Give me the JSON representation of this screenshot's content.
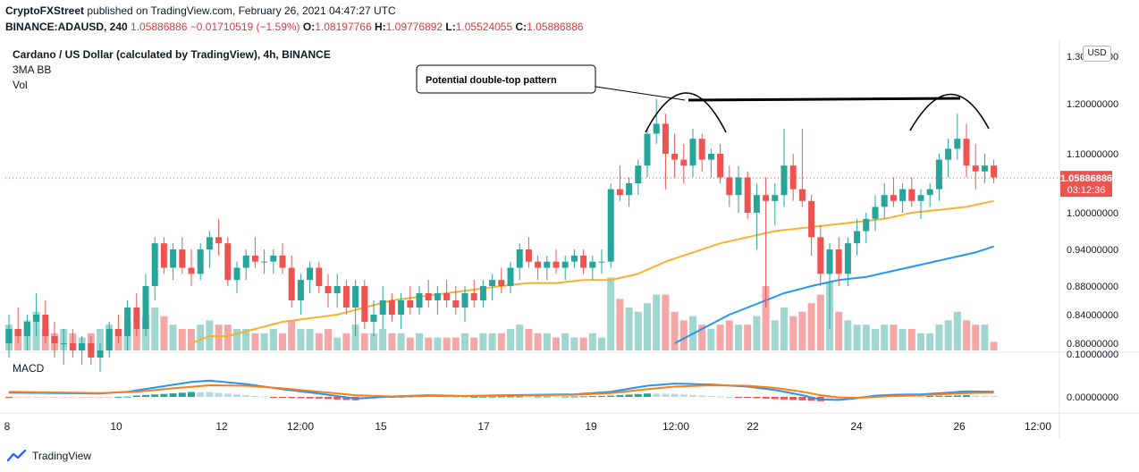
{
  "header": {
    "publisher": "CryptoFXStreet",
    "published_text": "published on TradingView.com, February 26, 2021 04:47:27 UTC",
    "symbol": "BINANCE:ADAUSD, 240",
    "last": "1.05886886",
    "change": "−0.01710519 (−1.59%)",
    "o_label": "O:",
    "o": "1.08197766",
    "h_label": "H:",
    "h": "1.09776892",
    "l_label": "L:",
    "l": "1.05524055",
    "c_label": "C:",
    "c": "1.05886886"
  },
  "legend": {
    "title": "Cardano / US Dollar (calculated by TradingView), 4h, BINANCE",
    "indicator": "3MA BB",
    "volume": "Vol",
    "macd": "MACD"
  },
  "currency_button": "USD",
  "annotation": "Potential double-top pattern",
  "price_tag": {
    "value": "1.05886886",
    "countdown": "03:12:36"
  },
  "footer": {
    "brand": "TradingView"
  },
  "colors": {
    "up": "#26a69a",
    "down": "#ef5350",
    "vol_up": "#9fd6cf",
    "vol_down": "#f5a6a6",
    "ma_fast": "#f7b12f",
    "ma_slow": "#2196f3",
    "macd": "#2196f3",
    "signal": "#ff7b15"
  },
  "chart_data": {
    "type": "candlestick",
    "symbol": "ADAUSD",
    "interval": "4h",
    "price_axis_ticks": [
      "1.30000000",
      "1.20000000",
      "1.10000000",
      "1.00000000",
      "0.94000000",
      "0.88000000",
      "0.84000000",
      "0.80000000"
    ],
    "macd_axis_ticks": [
      "0.10000000",
      "0.00000000"
    ],
    "x_tick_labels": [
      "8",
      "10",
      "12",
      "12:00",
      "15",
      "17",
      "19",
      "12:00",
      "22",
      "24",
      "26",
      "12:00"
    ],
    "candles": [
      [
        0.8,
        0.84,
        0.78,
        0.82
      ],
      [
        0.82,
        0.85,
        0.8,
        0.81
      ],
      [
        0.81,
        0.84,
        0.79,
        0.83
      ],
      [
        0.83,
        0.87,
        0.81,
        0.84
      ],
      [
        0.84,
        0.86,
        0.8,
        0.81
      ],
      [
        0.81,
        0.83,
        0.78,
        0.8
      ],
      [
        0.8,
        0.82,
        0.77,
        0.8
      ],
      [
        0.8,
        0.82,
        0.78,
        0.79
      ],
      [
        0.79,
        0.81,
        0.77,
        0.8
      ],
      [
        0.8,
        0.81,
        0.77,
        0.78
      ],
      [
        0.78,
        0.8,
        0.76,
        0.79
      ],
      [
        0.79,
        0.83,
        0.78,
        0.82
      ],
      [
        0.82,
        0.84,
        0.8,
        0.81
      ],
      [
        0.81,
        0.86,
        0.79,
        0.85
      ],
      [
        0.85,
        0.87,
        0.81,
        0.82
      ],
      [
        0.82,
        0.9,
        0.81,
        0.88
      ],
      [
        0.88,
        0.96,
        0.86,
        0.95
      ],
      [
        0.95,
        0.96,
        0.9,
        0.91
      ],
      [
        0.91,
        0.95,
        0.89,
        0.94
      ],
      [
        0.94,
        0.96,
        0.9,
        0.91
      ],
      [
        0.91,
        0.94,
        0.88,
        0.9
      ],
      [
        0.9,
        0.95,
        0.89,
        0.94
      ],
      [
        0.94,
        0.97,
        0.91,
        0.96
      ],
      [
        0.96,
        0.99,
        0.93,
        0.95
      ],
      [
        0.95,
        0.96,
        0.88,
        0.89
      ],
      [
        0.89,
        0.92,
        0.87,
        0.91
      ],
      [
        0.91,
        0.94,
        0.89,
        0.93
      ],
      [
        0.93,
        0.96,
        0.91,
        0.92
      ],
      [
        0.92,
        0.94,
        0.9,
        0.92
      ],
      [
        0.92,
        0.94,
        0.9,
        0.93
      ],
      [
        0.93,
        0.95,
        0.9,
        0.91
      ],
      [
        0.91,
        0.93,
        0.85,
        0.86
      ],
      [
        0.86,
        0.9,
        0.84,
        0.89
      ],
      [
        0.89,
        0.92,
        0.87,
        0.91
      ],
      [
        0.91,
        0.92,
        0.87,
        0.88
      ],
      [
        0.88,
        0.9,
        0.85,
        0.87
      ],
      [
        0.87,
        0.9,
        0.85,
        0.88
      ],
      [
        0.88,
        0.89,
        0.84,
        0.85
      ],
      [
        0.85,
        0.89,
        0.81,
        0.88
      ],
      [
        0.88,
        0.89,
        0.82,
        0.83
      ],
      [
        0.83,
        0.86,
        0.81,
        0.84
      ],
      [
        0.84,
        0.88,
        0.82,
        0.86
      ],
      [
        0.86,
        0.87,
        0.83,
        0.84
      ],
      [
        0.84,
        0.87,
        0.82,
        0.86
      ],
      [
        0.86,
        0.88,
        0.84,
        0.85
      ],
      [
        0.85,
        0.88,
        0.84,
        0.87
      ],
      [
        0.87,
        0.89,
        0.85,
        0.86
      ],
      [
        0.86,
        0.88,
        0.84,
        0.87
      ],
      [
        0.87,
        0.89,
        0.85,
        0.86
      ],
      [
        0.86,
        0.88,
        0.84,
        0.85
      ],
      [
        0.85,
        0.88,
        0.83,
        0.87
      ],
      [
        0.87,
        0.89,
        0.85,
        0.86
      ],
      [
        0.86,
        0.89,
        0.85,
        0.88
      ],
      [
        0.88,
        0.9,
        0.86,
        0.89
      ],
      [
        0.89,
        0.91,
        0.87,
        0.88
      ],
      [
        0.88,
        0.92,
        0.87,
        0.91
      ],
      [
        0.91,
        0.95,
        0.89,
        0.94
      ],
      [
        0.94,
        0.96,
        0.91,
        0.92
      ],
      [
        0.92,
        0.93,
        0.89,
        0.91
      ],
      [
        0.91,
        0.93,
        0.89,
        0.92
      ],
      [
        0.92,
        0.94,
        0.9,
        0.91
      ],
      [
        0.91,
        0.93,
        0.89,
        0.92
      ],
      [
        0.92,
        0.94,
        0.91,
        0.93
      ],
      [
        0.93,
        0.94,
        0.9,
        0.91
      ],
      [
        0.91,
        0.93,
        0.89,
        0.92
      ],
      [
        0.92,
        0.94,
        0.9,
        0.92
      ],
      [
        0.92,
        1.05,
        0.91,
        1.04
      ],
      [
        1.04,
        1.08,
        1.02,
        1.03
      ],
      [
        1.03,
        1.06,
        1.01,
        1.05
      ],
      [
        1.05,
        1.09,
        1.03,
        1.08
      ],
      [
        1.08,
        1.15,
        1.06,
        1.14
      ],
      [
        1.14,
        1.21,
        1.12,
        1.16
      ],
      [
        1.16,
        1.18,
        1.04,
        1.1
      ],
      [
        1.1,
        1.14,
        1.06,
        1.09
      ],
      [
        1.09,
        1.12,
        1.05,
        1.08
      ],
      [
        1.08,
        1.15,
        1.06,
        1.13
      ],
      [
        1.13,
        1.14,
        1.07,
        1.09
      ],
      [
        1.09,
        1.11,
        1.06,
        1.1
      ],
      [
        1.1,
        1.12,
        1.05,
        1.06
      ],
      [
        1.06,
        1.08,
        1.01,
        1.03
      ],
      [
        1.03,
        1.08,
        1.0,
        1.06
      ],
      [
        1.06,
        1.07,
        0.99,
        1.0
      ],
      [
        1.0,
        1.05,
        0.94,
        1.03
      ],
      [
        1.03,
        1.06,
        0.85,
        1.02
      ],
      [
        1.02,
        1.05,
        0.98,
        1.03
      ],
      [
        1.03,
        1.15,
        1.01,
        1.08
      ],
      [
        1.08,
        1.1,
        1.02,
        1.04
      ],
      [
        1.04,
        1.15,
        1.01,
        1.02
      ],
      [
        1.02,
        1.03,
        0.93,
        0.96
      ],
      [
        0.96,
        0.98,
        0.88,
        0.9
      ],
      [
        0.9,
        0.95,
        0.82,
        0.94
      ],
      [
        0.94,
        0.96,
        0.88,
        0.9
      ],
      [
        0.9,
        0.96,
        0.88,
        0.95
      ],
      [
        0.95,
        0.99,
        0.93,
        0.97
      ],
      [
        0.97,
        1.0,
        0.95,
        0.99
      ],
      [
        0.99,
        1.03,
        0.97,
        1.01
      ],
      [
        1.01,
        1.05,
        0.99,
        1.03
      ],
      [
        1.03,
        1.06,
        1.01,
        1.02
      ],
      [
        1.02,
        1.05,
        1.0,
        1.04
      ],
      [
        1.04,
        1.06,
        1.01,
        1.02
      ],
      [
        1.02,
        1.04,
        0.99,
        1.03
      ],
      [
        1.03,
        1.05,
        1.01,
        1.04
      ],
      [
        1.04,
        1.1,
        1.02,
        1.09
      ],
      [
        1.09,
        1.13,
        1.06,
        1.11
      ],
      [
        1.11,
        1.18,
        1.09,
        1.13
      ],
      [
        1.13,
        1.16,
        1.06,
        1.08
      ],
      [
        1.08,
        1.12,
        1.04,
        1.07
      ],
      [
        1.07,
        1.1,
        1.05,
        1.08
      ],
      [
        1.08,
        1.09,
        1.05,
        1.06
      ]
    ],
    "volume": [
      0.6,
      0.5,
      0.7,
      0.9,
      0.5,
      0.4,
      0.5,
      0.4,
      0.3,
      0.4,
      0.5,
      0.6,
      0.5,
      0.7,
      0.5,
      0.8,
      1.0,
      0.8,
      0.6,
      0.5,
      0.5,
      0.6,
      0.7,
      0.6,
      0.6,
      0.5,
      0.5,
      0.4,
      0.4,
      0.5,
      0.4,
      0.7,
      0.5,
      0.5,
      0.4,
      0.5,
      0.3,
      0.4,
      0.6,
      0.4,
      0.4,
      0.5,
      0.4,
      0.4,
      0.3,
      0.4,
      0.3,
      0.3,
      0.3,
      0.3,
      0.4,
      0.3,
      0.4,
      0.4,
      0.4,
      0.5,
      0.6,
      0.5,
      0.4,
      0.4,
      0.3,
      0.4,
      0.3,
      0.3,
      0.4,
      0.3,
      1.7,
      1.2,
      1.0,
      0.9,
      1.1,
      1.3,
      1.3,
      0.9,
      0.7,
      0.8,
      0.6,
      0.5,
      0.6,
      0.7,
      0.6,
      0.6,
      0.8,
      1.5,
      0.7,
      1.0,
      0.8,
      0.9,
      1.1,
      1.3,
      1.6,
      0.9,
      0.7,
      0.6,
      0.6,
      0.5,
      0.6,
      0.6,
      0.5,
      0.5,
      0.4,
      0.4,
      0.6,
      0.7,
      0.9,
      0.7,
      0.6,
      0.6,
      0.2
    ],
    "ma_fast": [
      [
        20,
        0.8
      ],
      [
        22,
        0.81
      ],
      [
        24,
        0.81
      ],
      [
        27,
        0.82
      ],
      [
        30,
        0.83
      ],
      [
        33,
        0.835
      ],
      [
        36,
        0.84
      ],
      [
        39,
        0.85
      ],
      [
        42,
        0.86
      ],
      [
        45,
        0.865
      ],
      [
        48,
        0.87
      ],
      [
        51,
        0.875
      ],
      [
        54,
        0.88
      ],
      [
        57,
        0.885
      ],
      [
        60,
        0.885
      ],
      [
        63,
        0.89
      ],
      [
        66,
        0.89
      ],
      [
        69,
        0.9
      ],
      [
        72,
        0.92
      ],
      [
        75,
        0.935
      ],
      [
        78,
        0.95
      ],
      [
        81,
        0.96
      ],
      [
        84,
        0.97
      ],
      [
        87,
        0.975
      ],
      [
        90,
        0.98
      ],
      [
        93,
        0.985
      ],
      [
        96,
        0.99
      ],
      [
        99,
        1.0
      ],
      [
        102,
        1.005
      ],
      [
        105,
        1.01
      ],
      [
        108,
        1.02
      ]
    ],
    "ma_slow": [
      [
        73,
        0.8
      ],
      [
        76,
        0.82
      ],
      [
        79,
        0.84
      ],
      [
        82,
        0.855
      ],
      [
        85,
        0.87
      ],
      [
        88,
        0.88
      ],
      [
        91,
        0.89
      ],
      [
        94,
        0.895
      ],
      [
        97,
        0.905
      ],
      [
        100,
        0.915
      ],
      [
        103,
        0.925
      ],
      [
        106,
        0.935
      ],
      [
        108,
        0.945
      ]
    ],
    "macd_line": [
      [
        0,
        0.01
      ],
      [
        10,
        0.008
      ],
      [
        13,
        0.012
      ],
      [
        17,
        0.025
      ],
      [
        20,
        0.035
      ],
      [
        22,
        0.038
      ],
      [
        26,
        0.03
      ],
      [
        30,
        0.018
      ],
      [
        34,
        0.008
      ],
      [
        38,
        -0.004
      ],
      [
        42,
        0.001
      ],
      [
        46,
        0.004
      ],
      [
        50,
        0.002
      ],
      [
        54,
        0.004
      ],
      [
        58,
        0.005
      ],
      [
        62,
        0.006
      ],
      [
        66,
        0.012
      ],
      [
        70,
        0.026
      ],
      [
        73,
        0.031
      ],
      [
        77,
        0.029
      ],
      [
        81,
        0.024
      ],
      [
        84,
        0.016
      ],
      [
        87,
        0.004
      ],
      [
        89,
        -0.006
      ],
      [
        91,
        -0.007
      ],
      [
        93,
        -0.003
      ],
      [
        95,
        0.003
      ],
      [
        97,
        0.005
      ],
      [
        100,
        0.006
      ],
      [
        103,
        0.01
      ],
      [
        105,
        0.013
      ],
      [
        108,
        0.012
      ]
    ],
    "signal_line": [
      [
        0,
        0.012
      ],
      [
        10,
        0.009
      ],
      [
        14,
        0.012
      ],
      [
        18,
        0.02
      ],
      [
        22,
        0.027
      ],
      [
        26,
        0.026
      ],
      [
        30,
        0.02
      ],
      [
        34,
        0.012
      ],
      [
        38,
        0.004
      ],
      [
        42,
        0.001
      ],
      [
        46,
        0.002
      ],
      [
        50,
        0.002
      ],
      [
        54,
        0.003
      ],
      [
        58,
        0.004
      ],
      [
        62,
        0.005
      ],
      [
        66,
        0.009
      ],
      [
        70,
        0.018
      ],
      [
        73,
        0.024
      ],
      [
        77,
        0.027
      ],
      [
        81,
        0.026
      ],
      [
        84,
        0.021
      ],
      [
        87,
        0.012
      ],
      [
        89,
        0.004
      ],
      [
        91,
        -0.001
      ],
      [
        93,
        -0.002
      ],
      [
        95,
        0.0
      ],
      [
        97,
        0.002
      ],
      [
        100,
        0.004
      ],
      [
        103,
        0.007
      ],
      [
        105,
        0.009
      ],
      [
        108,
        0.01
      ]
    ]
  }
}
